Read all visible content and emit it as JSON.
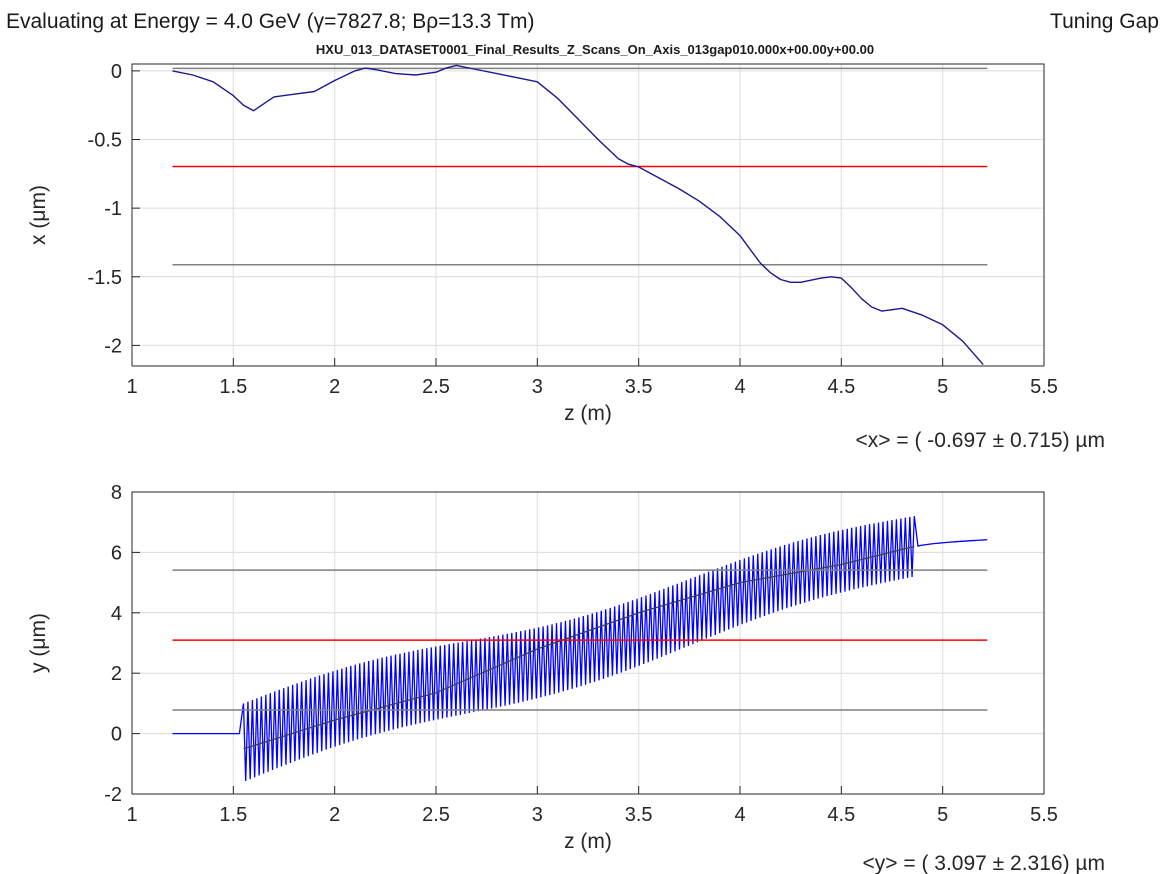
{
  "header": {
    "energy_line": "Evaluating at Energy =  4.0 GeV (γ=7827.8; Bρ=13.3 Tm)",
    "mode": "Tuning Gap",
    "dataset": "HXU_013_DATASET0001_Final_Results_Z_Scans_On_Axis_013gap010.000x+00.00y+00.00"
  },
  "chart_data": [
    {
      "type": "line",
      "xlabel": "z (m)",
      "ylabel": "x (μm)",
      "xlim": [
        1,
        5.5
      ],
      "ylim": [
        -2.15,
        0.05
      ],
      "xticks": [
        1,
        1.5,
        2,
        2.5,
        3,
        3.5,
        4,
        4.5,
        5,
        5.5
      ],
      "yticks": [
        0,
        -0.5,
        -1,
        -1.5,
        -2
      ],
      "xtick_labels": [
        "1",
        "1.5",
        "2",
        "2.5",
        "3",
        "3.5",
        "4",
        "4.5",
        "5",
        "5.5"
      ],
      "ytick_labels": [
        "0",
        "-0.5",
        "-1",
        "-1.5",
        "-2"
      ],
      "grid": true,
      "summary": "<x> = ( -0.697 ± 0.715) µm",
      "series": [
        {
          "role": "trajectory",
          "color": "#1a1a8c",
          "x": [
            1.2,
            1.3,
            1.4,
            1.5,
            1.55,
            1.6,
            1.65,
            1.7,
            1.8,
            1.9,
            2.0,
            2.1,
            2.15,
            2.2,
            2.3,
            2.4,
            2.5,
            2.55,
            2.6,
            2.7,
            2.8,
            2.9,
            3.0,
            3.1,
            3.2,
            3.3,
            3.4,
            3.45,
            3.5,
            3.6,
            3.7,
            3.8,
            3.9,
            4.0,
            4.05,
            4.1,
            4.15,
            4.2,
            4.25,
            4.3,
            4.4,
            4.45,
            4.5,
            4.55,
            4.6,
            4.65,
            4.7,
            4.8,
            4.9,
            5.0,
            5.1,
            5.2
          ],
          "y": [
            0.0,
            -0.03,
            -0.08,
            -0.18,
            -0.25,
            -0.29,
            -0.24,
            -0.19,
            -0.17,
            -0.15,
            -0.07,
            0.0,
            0.02,
            0.01,
            -0.02,
            -0.03,
            -0.01,
            0.02,
            0.04,
            0.01,
            -0.02,
            -0.05,
            -0.08,
            -0.2,
            -0.35,
            -0.5,
            -0.64,
            -0.68,
            -0.7,
            -0.78,
            -0.86,
            -0.95,
            -1.06,
            -1.2,
            -1.3,
            -1.4,
            -1.47,
            -1.52,
            -1.54,
            -1.54,
            -1.51,
            -1.5,
            -1.51,
            -1.58,
            -1.66,
            -1.72,
            -1.75,
            -1.73,
            -1.78,
            -1.85,
            -1.97,
            -2.14
          ]
        },
        {
          "role": "mean",
          "color": "#ff0000",
          "x": [
            1.2,
            5.22
          ],
          "y": [
            -0.697,
            -0.697
          ]
        },
        {
          "role": "mean+sigma",
          "color": "#808080",
          "x": [
            1.2,
            5.22
          ],
          "y": [
            0.018,
            0.018
          ]
        },
        {
          "role": "mean-sigma",
          "color": "#808080",
          "x": [
            1.2,
            5.22
          ],
          "y": [
            -1.412,
            -1.412
          ]
        }
      ]
    },
    {
      "type": "line",
      "xlabel": "z (m)",
      "ylabel": "y  (μm)",
      "xlim": [
        1,
        5.5
      ],
      "ylim": [
        -2,
        8
      ],
      "xticks": [
        1,
        1.5,
        2,
        2.5,
        3,
        3.5,
        4,
        4.5,
        5,
        5.5
      ],
      "yticks": [
        8,
        6,
        4,
        2,
        0,
        -2
      ],
      "xtick_labels": [
        "1",
        "1.5",
        "2",
        "2.5",
        "3",
        "3.5",
        "4",
        "4.5",
        "5",
        "5.5"
      ],
      "ytick_labels": [
        "8",
        "6",
        "4",
        "2",
        "0",
        "-2"
      ],
      "grid": true,
      "summary": "<y>  = (  3.097 ± 2.316) µm",
      "series": [
        {
          "role": "oscillating trajectory",
          "color": "#0000ff",
          "z_start": 1.2,
          "z_flat_end": 1.53,
          "z_osc_start": 1.55,
          "z_osc_end": 4.86,
          "z_end": 5.22,
          "periods": 150,
          "center_start": -0.3,
          "center_end": 6.2,
          "amplitude_start": 1.3,
          "amplitude_end": 1.0,
          "tail_start": 6.15,
          "tail_end": 6.42
        },
        {
          "role": "averaged trajectory",
          "color": "#404040",
          "x": [
            1.55,
            1.6,
            2.0,
            2.5,
            3.0,
            3.5,
            4.0,
            4.5,
            4.86
          ],
          "y": [
            -0.5,
            -0.4,
            0.45,
            1.35,
            2.8,
            4.0,
            5.0,
            5.6,
            6.2
          ]
        },
        {
          "role": "mean",
          "color": "#ff0000",
          "x": [
            1.2,
            5.22
          ],
          "y": [
            3.097,
            3.097
          ]
        },
        {
          "role": "mean+sigma",
          "color": "#808080",
          "x": [
            1.2,
            5.22
          ],
          "y": [
            5.413,
            5.413
          ]
        },
        {
          "role": "mean-sigma",
          "color": "#808080",
          "x": [
            1.2,
            5.22
          ],
          "y": [
            0.781,
            0.781
          ]
        }
      ]
    }
  ]
}
